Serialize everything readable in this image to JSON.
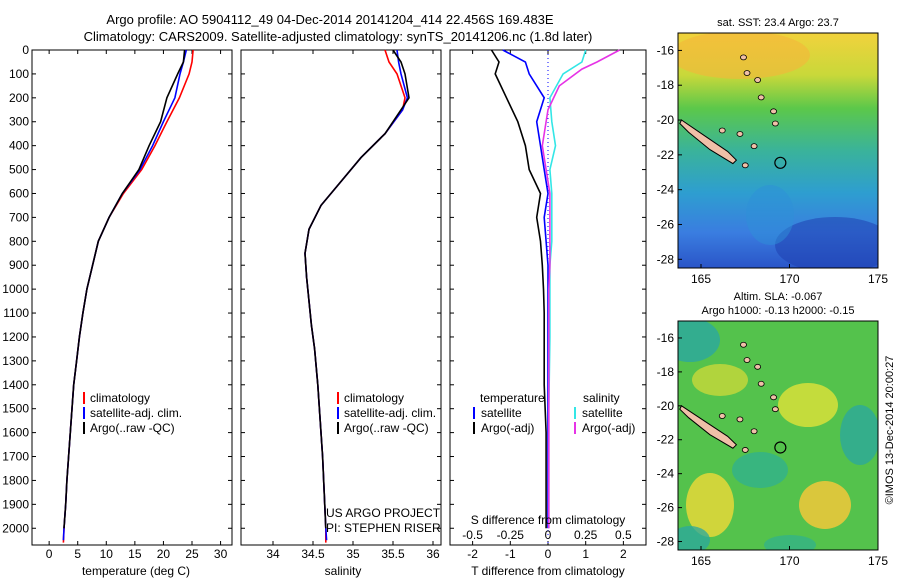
{
  "header": {
    "line1": "Argo profile: AO 5904112_49 04-Dec-2014 20141204_414 22.456S 169.483E",
    "line2": "Climatology: CARS2009. Satellite-adjusted climatology: synTS_20141206.nc (1.8d later)"
  },
  "colors": {
    "climatology": "#ff0000",
    "satellite": "#0000ff",
    "argo": "#000000",
    "satellite_salinity": "#33e6e6",
    "argo_salinity": "#e633e6"
  },
  "chart_data": [
    {
      "type": "line",
      "xlabel": "temperature (deg C)",
      "xticks": [
        "0",
        "5",
        "10",
        "15",
        "20",
        "25",
        "30"
      ],
      "xlim": [
        -3,
        32
      ],
      "ylim": [
        2070,
        0
      ],
      "yticks": [
        "0",
        "100",
        "200",
        "300",
        "400",
        "500",
        "600",
        "700",
        "800",
        "900",
        "1000",
        "1100",
        "1200",
        "1300",
        "1400",
        "1500",
        "1600",
        "1700",
        "1800",
        "1900",
        "2000"
      ],
      "legend": [
        "climatology",
        "satellite-adj. clim.",
        "Argo(..raw -QC)"
      ],
      "series": [
        {
          "name": "climatology",
          "color": "#ff0000",
          "points": [
            [
              25.2,
              0
            ],
            [
              25,
              50
            ],
            [
              24.5,
              100
            ],
            [
              22.8,
              200
            ],
            [
              20.6,
              300
            ],
            [
              18.5,
              400
            ],
            [
              16.2,
              500
            ],
            [
              13,
              600
            ],
            [
              10.5,
              700
            ],
            [
              8.6,
              800
            ],
            [
              7.6,
              900
            ],
            [
              6.6,
              1000
            ],
            [
              5.9,
              1100
            ],
            [
              5.3,
              1200
            ],
            [
              4.8,
              1300
            ],
            [
              4.3,
              1400
            ],
            [
              4.0,
              1500
            ],
            [
              3.7,
              1600
            ],
            [
              3.4,
              1700
            ],
            [
              3.1,
              1800
            ],
            [
              2.9,
              1900
            ],
            [
              2.6,
              2000
            ],
            [
              2.5,
              2060
            ]
          ]
        },
        {
          "name": "satellite-adj. clim.",
          "color": "#0000ff",
          "points": [
            [
              24,
              0
            ],
            [
              23.5,
              50
            ],
            [
              22.9,
              100
            ],
            [
              22,
              200
            ],
            [
              20,
              300
            ],
            [
              18.1,
              400
            ],
            [
              15.9,
              500
            ],
            [
              12.8,
              600
            ],
            [
              10.5,
              700
            ],
            [
              8.6,
              800
            ],
            [
              7.6,
              900
            ],
            [
              6.6,
              1000
            ],
            [
              5.9,
              1100
            ],
            [
              5.3,
              1200
            ],
            [
              4.8,
              1300
            ],
            [
              4.3,
              1400
            ],
            [
              4.0,
              1500
            ],
            [
              3.7,
              1600
            ],
            [
              3.4,
              1700
            ],
            [
              3.1,
              1800
            ],
            [
              2.9,
              1900
            ],
            [
              2.6,
              2000
            ],
            [
              2.5,
              2050
            ]
          ]
        },
        {
          "name": "Argo(..raw -QC)",
          "color": "#000000",
          "points": [
            [
              23.7,
              0
            ],
            [
              23.5,
              50
            ],
            [
              22.5,
              100
            ],
            [
              20.6,
              200
            ],
            [
              19.5,
              300
            ],
            [
              17.5,
              400
            ],
            [
              15.7,
              500
            ],
            [
              12.8,
              600
            ],
            [
              10.5,
              700
            ],
            [
              8.6,
              800
            ],
            [
              7.6,
              900
            ],
            [
              6.6,
              1000
            ],
            [
              5.9,
              1100
            ],
            [
              5.3,
              1200
            ],
            [
              4.8,
              1300
            ],
            [
              4.3,
              1400
            ],
            [
              4.0,
              1500
            ],
            [
              3.7,
              1600
            ],
            [
              3.4,
              1700
            ],
            [
              3.1,
              1800
            ],
            [
              2.9,
              1900
            ],
            [
              2.6,
              2000
            ]
          ]
        }
      ]
    },
    {
      "type": "line",
      "xlabel": "salinity",
      "xticks": [
        "34",
        "34.5",
        "35",
        "35.5",
        "36"
      ],
      "xlim": [
        33.6,
        36.1
      ],
      "ylim": [
        2070,
        0
      ],
      "legend": [
        "climatology",
        "satellite-adj. clim.",
        "Argo(..raw -QC)"
      ],
      "annotation": [
        "US ARGO PROJECT",
        "PI: STEPHEN RISER"
      ],
      "series": [
        {
          "name": "climatology",
          "color": "#ff0000",
          "points": [
            [
              35.4,
              0
            ],
            [
              35.45,
              50
            ],
            [
              35.55,
              100
            ],
            [
              35.65,
              200
            ],
            [
              35.62,
              250
            ],
            [
              35.4,
              350
            ],
            [
              35.1,
              450
            ],
            [
              34.85,
              550
            ],
            [
              34.6,
              650
            ],
            [
              34.45,
              750
            ],
            [
              34.4,
              850
            ],
            [
              34.42,
              950
            ],
            [
              34.45,
              1050
            ],
            [
              34.48,
              1150
            ],
            [
              34.52,
              1250
            ],
            [
              34.56,
              1400
            ],
            [
              34.59,
              1550
            ],
            [
              34.62,
              1700
            ],
            [
              34.64,
              1850
            ],
            [
              34.66,
              2000
            ],
            [
              34.66,
              2060
            ]
          ]
        },
        {
          "name": "satellite-adj. clim.",
          "color": "#0000ff",
          "points": [
            [
              35.55,
              0
            ],
            [
              35.57,
              50
            ],
            [
              35.6,
              100
            ],
            [
              35.68,
              200
            ],
            [
              35.62,
              250
            ],
            [
              35.4,
              350
            ],
            [
              35.1,
              450
            ],
            [
              34.85,
              550
            ],
            [
              34.6,
              650
            ],
            [
              34.45,
              750
            ],
            [
              34.4,
              850
            ],
            [
              34.42,
              950
            ],
            [
              34.45,
              1050
            ],
            [
              34.48,
              1150
            ],
            [
              34.52,
              1250
            ],
            [
              34.56,
              1400
            ],
            [
              34.59,
              1550
            ],
            [
              34.62,
              1700
            ],
            [
              34.64,
              1850
            ],
            [
              34.66,
              2000
            ],
            [
              34.67,
              2050
            ]
          ]
        },
        {
          "name": "Argo(..raw -QC)",
          "color": "#000000",
          "points": [
            [
              35.5,
              0
            ],
            [
              35.6,
              50
            ],
            [
              35.65,
              100
            ],
            [
              35.7,
              200
            ],
            [
              35.6,
              250
            ],
            [
              35.4,
              350
            ],
            [
              35.1,
              450
            ],
            [
              34.85,
              550
            ],
            [
              34.6,
              650
            ],
            [
              34.45,
              750
            ],
            [
              34.4,
              850
            ],
            [
              34.42,
              950
            ],
            [
              34.45,
              1050
            ],
            [
              34.48,
              1150
            ],
            [
              34.52,
              1250
            ],
            [
              34.56,
              1400
            ],
            [
              34.59,
              1550
            ],
            [
              34.62,
              1700
            ],
            [
              34.64,
              1850
            ],
            [
              34.66,
              2000
            ]
          ]
        }
      ]
    },
    {
      "type": "line",
      "xlabel": "T difference from climatology",
      "xlabel_top": "S difference from climatology",
      "xticks": [
        "-2",
        "-1",
        "0",
        "1",
        "2"
      ],
      "xticks_s": [
        "-0.5",
        "-0.25",
        "0",
        "0.25",
        "0.5"
      ],
      "xlim": [
        -2.6,
        2.6
      ],
      "ylim": [
        2070,
        0
      ],
      "legend_headers": [
        "temperature",
        "salinity"
      ],
      "legend": [
        "satellite",
        "Argo(-adj)",
        "satellite",
        "Argo(-adj)"
      ],
      "series": [
        {
          "name": "satellite",
          "color": "#0000ff",
          "points": [
            [
              -1.2,
              0
            ],
            [
              -0.6,
              50
            ],
            [
              -0.5,
              100
            ],
            [
              -0.1,
              200
            ],
            [
              -0.3,
              300
            ],
            [
              -0.2,
              400
            ],
            [
              -0.1,
              500
            ],
            [
              0,
              600
            ],
            [
              -0.1,
              700
            ],
            [
              0,
              900
            ],
            [
              0,
              1200
            ],
            [
              0,
              1600
            ],
            [
              0,
              2000
            ]
          ]
        },
        {
          "name": "Argo(-adj)",
          "color": "#000000",
          "points": [
            [
              -1.5,
              0
            ],
            [
              -1.3,
              50
            ],
            [
              -1.4,
              100
            ],
            [
              -1.1,
              200
            ],
            [
              -0.8,
              300
            ],
            [
              -0.6,
              400
            ],
            [
              -0.5,
              500
            ],
            [
              -0.2,
              600
            ],
            [
              -0.3,
              700
            ],
            [
              -0.2,
              800
            ],
            [
              -0.15,
              900
            ],
            [
              -0.12,
              1000
            ],
            [
              -0.1,
              1100
            ],
            [
              -0.1,
              1200
            ],
            [
              -0.1,
              1400
            ],
            [
              -0.05,
              1600
            ],
            [
              -0.05,
              2000
            ]
          ]
        },
        {
          "name": "satellite",
          "color": "#33e6e6",
          "points": [
            [
              1.0,
              0
            ],
            [
              0.9,
              50
            ],
            [
              0.4,
              100
            ],
            [
              0.05,
              200
            ],
            [
              0.1,
              300
            ],
            [
              0.2,
              400
            ],
            [
              0.05,
              500
            ],
            [
              0.1,
              600
            ],
            [
              0.1,
              700
            ],
            [
              0.1,
              800
            ],
            [
              0.05,
              900
            ],
            [
              0.05,
              1000
            ],
            [
              0.05,
              1200
            ],
            [
              0.02,
              1500
            ],
            [
              0.02,
              1800
            ],
            [
              0.02,
              2000
            ]
          ]
        },
        {
          "name": "Argo(-adj)",
          "color": "#e633e6",
          "points": [
            [
              1.9,
              0
            ],
            [
              1.3,
              50
            ],
            [
              0.9,
              80
            ],
            [
              0.3,
              150
            ],
            [
              0,
              250
            ],
            [
              -0.15,
              400
            ],
            [
              -0.05,
              500
            ],
            [
              0.05,
              600
            ],
            [
              0.05,
              700
            ],
            [
              0.05,
              800
            ],
            [
              0.05,
              900
            ],
            [
              0.02,
              1000
            ],
            [
              0.02,
              1200
            ],
            [
              0.02,
              1500
            ],
            [
              0.02,
              1800
            ],
            [
              0.02,
              2000
            ]
          ]
        }
      ]
    },
    {
      "type": "heatmap",
      "title": "sat. SST: 23.4  Argo: 23.7",
      "xticks": [
        "165",
        "170",
        "175"
      ],
      "yticks": [
        "-16",
        "-18",
        "-20",
        "-22",
        "-24",
        "-26",
        "-28"
      ]
    },
    {
      "type": "heatmap",
      "title_line1": "Altim. SLA: -0.067",
      "title_line2": "Argo h1000: -0.13 h2000: -0.15",
      "xticks": [
        "165",
        "170",
        "175"
      ],
      "yticks": [
        "-16",
        "-18",
        "-20",
        "-22",
        "-24",
        "-26",
        "-28"
      ]
    }
  ],
  "credit": "©IMOS 13-Dec-2014 20:00:27"
}
